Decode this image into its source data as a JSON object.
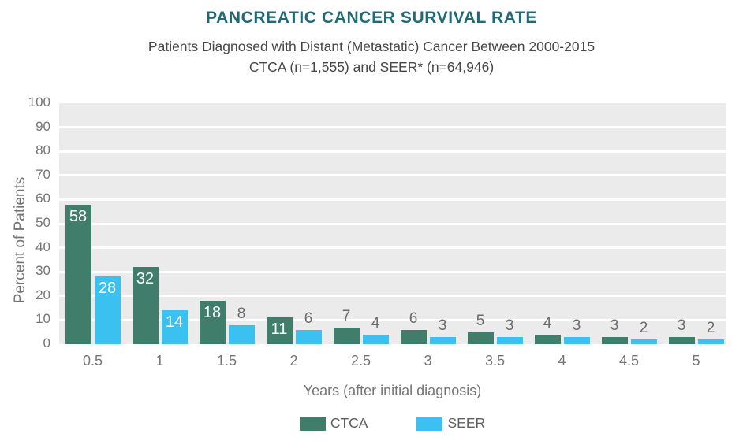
{
  "chart_data": {
    "type": "bar",
    "title": "PANCREATIC CANCER SURVIVAL RATE",
    "subtitle_lines": [
      "Patients Diagnosed with Distant (Metastatic) Cancer Between 2000-2015",
      "CTCA (n=1,555) and SEER* (n=64,946)"
    ],
    "categories": [
      "0.5",
      "1",
      "1.5",
      "2",
      "2.5",
      "3",
      "3.5",
      "4",
      "4.5",
      "5"
    ],
    "series": [
      {
        "name": "CTCA",
        "color": "#417D6B",
        "values": [
          58,
          32,
          18,
          11,
          7,
          6,
          5,
          4,
          3,
          3
        ]
      },
      {
        "name": "SEER",
        "color": "#3BC1EF",
        "values": [
          28,
          14,
          8,
          6,
          4,
          3,
          3,
          3,
          2,
          2
        ]
      }
    ],
    "xlabel": "Years (after initial diagnosis)",
    "ylabel": "Percent of Patients",
    "ylim": [
      0,
      100
    ],
    "ytick_step": 10,
    "grid": "horizontal white gridlines on gray plot background",
    "legend_position": "bottom-center",
    "value_labels": "values >= 10 shown in white inside bar top; smaller values shown in gray above bar"
  },
  "colors": {
    "title": "#1E6B76",
    "subtitle": "#474747",
    "axis_text": "#757575",
    "plot_background": "#EBEBEB",
    "gridline": "#FFFFFF",
    "value_label_inside": "#FFFFFF",
    "value_label_outside": "#6B6B6B",
    "legend_text": "#5F5F5F",
    "ctca_bar": "#417D6B",
    "seer_bar": "#3BC1EF"
  }
}
